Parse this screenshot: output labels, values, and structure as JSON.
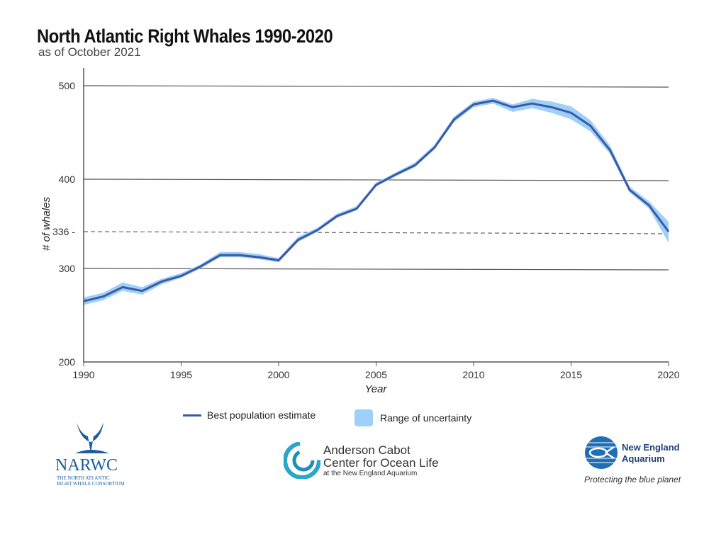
{
  "chart_data": {
    "type": "line",
    "title": "North Atlantic Right Whales 1990-2020",
    "subtitle": "as of October 2021",
    "xlabel": "Year",
    "ylabel": "# of whales",
    "xlim": [
      1990,
      2020
    ],
    "ylim": [
      200,
      500
    ],
    "x_ticks": [
      1990,
      1995,
      2000,
      2005,
      2010,
      2015,
      2020
    ],
    "y_ticks": [
      200,
      300,
      336,
      400,
      500
    ],
    "reference_line": {
      "value": 336,
      "style": "dashed"
    },
    "grid": "horizontal",
    "legend_placement": "bottom",
    "x": [
      1990,
      1991,
      1992,
      1993,
      1994,
      1995,
      1996,
      1997,
      1998,
      1999,
      2000,
      2001,
      2002,
      2003,
      2004,
      2005,
      2006,
      2007,
      2008,
      2009,
      2010,
      2011,
      2012,
      2013,
      2014,
      2015,
      2016,
      2017,
      2018,
      2019,
      2020
    ],
    "series": [
      {
        "name": "Best population estimate",
        "color": "#3a5aa8",
        "values": [
          265,
          270,
          280,
          276,
          286,
          292,
          302,
          313,
          313,
          311,
          308,
          328,
          338,
          355,
          364,
          393,
          405,
          415,
          434,
          464,
          480,
          484,
          477,
          481,
          477,
          471,
          457,
          431,
          387,
          368,
          336
        ]
      },
      {
        "name": "Range of uncertainty",
        "type": "band",
        "color": "#9fd0f7",
        "lower": [
          261,
          266,
          276,
          272,
          283,
          290,
          300,
          311,
          311,
          309,
          306,
          326,
          336,
          353,
          362,
          391,
          403,
          413,
          432,
          461,
          477,
          481,
          472,
          476,
          471,
          464,
          451,
          427,
          384,
          364,
          325
        ],
        "upper": [
          269,
          274,
          285,
          280,
          289,
          295,
          304,
          316,
          316,
          314,
          310,
          331,
          341,
          358,
          367,
          396,
          407,
          418,
          437,
          467,
          483,
          487,
          480,
          486,
          483,
          478,
          463,
          436,
          391,
          373,
          348
        ]
      }
    ]
  },
  "legend": {
    "line_label": "Best population estimate",
    "band_label": "Range of uncertainty"
  },
  "logos": {
    "narwc": {
      "name": "NARWC",
      "line1": "THE NORTH ATLANTIC",
      "line2": "RIGHT WHALE CONSORTIUM"
    },
    "anderson": {
      "line1": "Anderson Cabot",
      "line2": "Center for Ocean Life",
      "line3": "at the New England Aquarium"
    },
    "nea": {
      "line1": "New England",
      "line2": "Aquarium",
      "tagline": "Protecting the blue planet"
    }
  }
}
